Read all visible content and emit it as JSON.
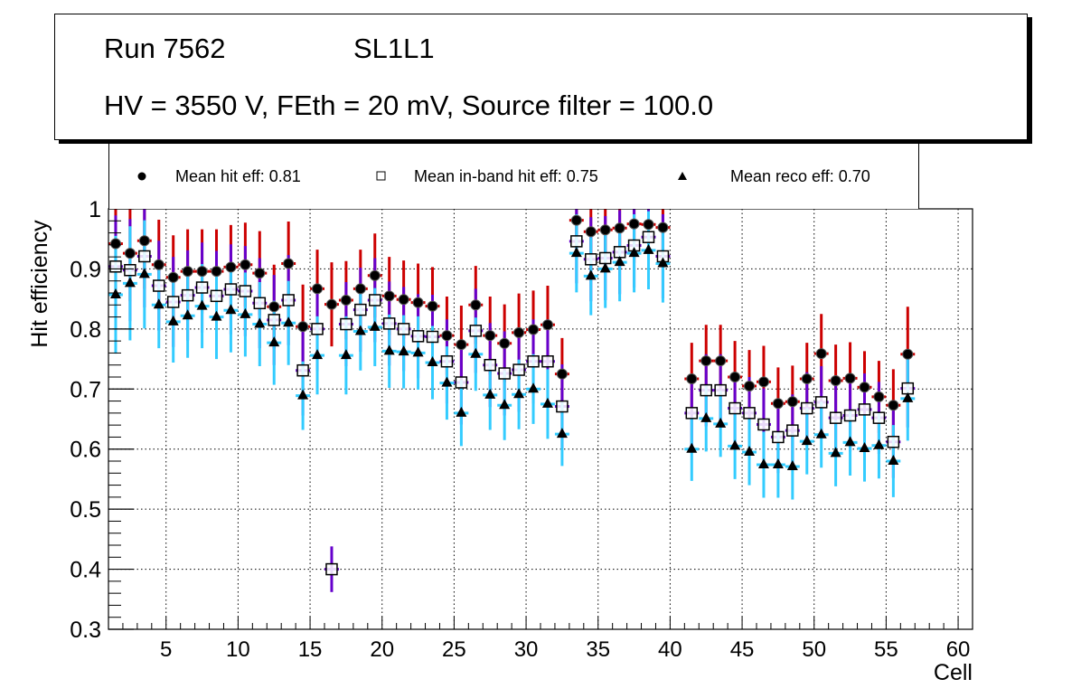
{
  "title": {
    "run": "Run 7562",
    "layer": "SL1L1",
    "conditions": "HV = 3550 V, FEth = 20 mV, Source filter = 100.0"
  },
  "legend": [
    {
      "marker": "filled-circle",
      "label": "Mean hit  eff: 0.81"
    },
    {
      "marker": "open-square",
      "label": "Mean in-band hit eff: 0.75"
    },
    {
      "marker": "filled-triangle",
      "label": "Mean reco eff: 0.70"
    }
  ],
  "colors": {
    "hit_error": "#cc0000",
    "inband_error": "#6600cc",
    "reco_error": "#33ccff",
    "marker": "#000000",
    "grid": "#000000"
  },
  "chart_data": {
    "type": "scatter",
    "title": "Run 7562 SL1L1 — HV = 3550 V, FEth = 20 mV, Source filter = 100.0",
    "xlabel": "Cell",
    "ylabel": "Hit efficiency",
    "xlim": [
      1,
      61
    ],
    "ylim": [
      0.3,
      1.0
    ],
    "xticks": [
      5,
      10,
      15,
      20,
      25,
      30,
      35,
      40,
      45,
      50,
      55,
      60
    ],
    "yticks": [
      0.3,
      0.4,
      0.5,
      0.6,
      0.7,
      0.8,
      0.9,
      1.0
    ],
    "ytick_labels": [
      "0.3",
      "0.4",
      "0.5",
      "0.6",
      "0.7",
      "0.8",
      "0.9",
      "1"
    ],
    "grid": true,
    "legend_position": "top",
    "series": [
      {
        "name": "Mean hit  eff: 0.81",
        "marker": "filled-circle",
        "error_color": "#cc0000",
        "points": [
          {
            "cell": 1,
            "value": 0.942,
            "err": 0.08
          },
          {
            "cell": 2,
            "value": 0.926,
            "err": 0.08
          },
          {
            "cell": 3,
            "value": 0.947,
            "err": 0.08
          },
          {
            "cell": 4,
            "value": 0.907,
            "err": 0.075
          },
          {
            "cell": 5,
            "value": 0.886,
            "err": 0.07
          },
          {
            "cell": 6,
            "value": 0.896,
            "err": 0.07
          },
          {
            "cell": 7,
            "value": 0.896,
            "err": 0.07
          },
          {
            "cell": 8,
            "value": 0.896,
            "err": 0.07
          },
          {
            "cell": 9,
            "value": 0.903,
            "err": 0.07
          },
          {
            "cell": 10,
            "value": 0.907,
            "err": 0.07
          },
          {
            "cell": 11,
            "value": 0.893,
            "err": 0.07
          },
          {
            "cell": 12,
            "value": 0.837,
            "err": 0.07
          },
          {
            "cell": 13,
            "value": 0.909,
            "err": 0.07
          },
          {
            "cell": 14,
            "value": 0.804,
            "err": 0.07
          },
          {
            "cell": 15,
            "value": 0.867,
            "err": 0.065
          },
          {
            "cell": 16,
            "value": 0.841,
            "err": 0.07
          },
          {
            "cell": 17,
            "value": 0.848,
            "err": 0.065
          },
          {
            "cell": 18,
            "value": 0.867,
            "err": 0.065
          },
          {
            "cell": 19,
            "value": 0.889,
            "err": 0.07
          },
          {
            "cell": 20,
            "value": 0.855,
            "err": 0.065
          },
          {
            "cell": 21,
            "value": 0.849,
            "err": 0.065
          },
          {
            "cell": 22,
            "value": 0.844,
            "err": 0.065
          },
          {
            "cell": 23,
            "value": 0.838,
            "err": 0.065
          },
          {
            "cell": 24,
            "value": 0.789,
            "err": 0.065
          },
          {
            "cell": 25,
            "value": 0.774,
            "err": 0.065
          },
          {
            "cell": 26,
            "value": 0.84,
            "err": 0.065
          },
          {
            "cell": 27,
            "value": 0.789,
            "err": 0.065
          },
          {
            "cell": 28,
            "value": 0.776,
            "err": 0.065
          },
          {
            "cell": 29,
            "value": 0.794,
            "err": 0.065
          },
          {
            "cell": 30,
            "value": 0.799,
            "err": 0.065
          },
          {
            "cell": 31,
            "value": 0.807,
            "err": 0.065
          },
          {
            "cell": 32,
            "value": 0.725,
            "err": 0.06
          },
          {
            "cell": 33,
            "value": 0.981,
            "err": 0.06
          },
          {
            "cell": 34,
            "value": 0.962,
            "err": 0.065
          },
          {
            "cell": 35,
            "value": 0.965,
            "err": 0.065
          },
          {
            "cell": 36,
            "value": 0.968,
            "err": 0.065
          },
          {
            "cell": 37,
            "value": 0.975,
            "err": 0.065
          },
          {
            "cell": 38,
            "value": 0.974,
            "err": 0.065
          },
          {
            "cell": 39,
            "value": 0.969,
            "err": 0.065
          },
          {
            "cell": 41,
            "value": 0.717,
            "err": 0.06
          },
          {
            "cell": 42,
            "value": 0.747,
            "err": 0.06
          },
          {
            "cell": 43,
            "value": 0.747,
            "err": 0.06
          },
          {
            "cell": 44,
            "value": 0.72,
            "err": 0.06
          },
          {
            "cell": 45,
            "value": 0.705,
            "err": 0.06
          },
          {
            "cell": 46,
            "value": 0.712,
            "err": 0.06
          },
          {
            "cell": 47,
            "value": 0.676,
            "err": 0.06
          },
          {
            "cell": 48,
            "value": 0.679,
            "err": 0.06
          },
          {
            "cell": 49,
            "value": 0.717,
            "err": 0.06
          },
          {
            "cell": 50,
            "value": 0.759,
            "err": 0.066
          },
          {
            "cell": 51,
            "value": 0.714,
            "err": 0.06
          },
          {
            "cell": 52,
            "value": 0.718,
            "err": 0.06
          },
          {
            "cell": 53,
            "value": 0.703,
            "err": 0.06
          },
          {
            "cell": 54,
            "value": 0.687,
            "err": 0.06
          },
          {
            "cell": 55,
            "value": 0.673,
            "err": 0.06
          },
          {
            "cell": 56,
            "value": 0.758,
            "err": 0.079
          }
        ]
      },
      {
        "name": "Mean in-band hit eff: 0.75",
        "marker": "open-square",
        "error_color": "#6600cc",
        "points": [
          {
            "cell": 1,
            "value": 0.904,
            "err": 0.085
          },
          {
            "cell": 2,
            "value": 0.898,
            "err": 0.085
          },
          {
            "cell": 3,
            "value": 0.921,
            "err": 0.085
          },
          {
            "cell": 4,
            "value": 0.872,
            "err": 0.075
          },
          {
            "cell": 5,
            "value": 0.845,
            "err": 0.075
          },
          {
            "cell": 6,
            "value": 0.856,
            "err": 0.075
          },
          {
            "cell": 7,
            "value": 0.869,
            "err": 0.075
          },
          {
            "cell": 8,
            "value": 0.855,
            "err": 0.075
          },
          {
            "cell": 9,
            "value": 0.866,
            "err": 0.075
          },
          {
            "cell": 10,
            "value": 0.863,
            "err": 0.075
          },
          {
            "cell": 11,
            "value": 0.843,
            "err": 0.075
          },
          {
            "cell": 12,
            "value": 0.815,
            "err": 0.075
          },
          {
            "cell": 13,
            "value": 0.848,
            "err": 0.075
          },
          {
            "cell": 14,
            "value": 0.731,
            "err": 0.075
          },
          {
            "cell": 15,
            "value": 0.8,
            "err": 0.07
          },
          {
            "cell": 16,
            "value": 0.4,
            "err": 0.038
          },
          {
            "cell": 17,
            "value": 0.808,
            "err": 0.07
          },
          {
            "cell": 18,
            "value": 0.832,
            "err": 0.07
          },
          {
            "cell": 19,
            "value": 0.848,
            "err": 0.07
          },
          {
            "cell": 20,
            "value": 0.809,
            "err": 0.07
          },
          {
            "cell": 21,
            "value": 0.8,
            "err": 0.07
          },
          {
            "cell": 22,
            "value": 0.788,
            "err": 0.07
          },
          {
            "cell": 23,
            "value": 0.787,
            "err": 0.07
          },
          {
            "cell": 24,
            "value": 0.746,
            "err": 0.07
          },
          {
            "cell": 25,
            "value": 0.711,
            "err": 0.07
          },
          {
            "cell": 26,
            "value": 0.797,
            "err": 0.07
          },
          {
            "cell": 27,
            "value": 0.74,
            "err": 0.07
          },
          {
            "cell": 28,
            "value": 0.726,
            "err": 0.07
          },
          {
            "cell": 29,
            "value": 0.732,
            "err": 0.07
          },
          {
            "cell": 30,
            "value": 0.746,
            "err": 0.07
          },
          {
            "cell": 31,
            "value": 0.746,
            "err": 0.07
          },
          {
            "cell": 32,
            "value": 0.671,
            "err": 0.07
          },
          {
            "cell": 33,
            "value": 0.946,
            "err": 0.07
          },
          {
            "cell": 34,
            "value": 0.916,
            "err": 0.07
          },
          {
            "cell": 35,
            "value": 0.918,
            "err": 0.07
          },
          {
            "cell": 36,
            "value": 0.928,
            "err": 0.07
          },
          {
            "cell": 37,
            "value": 0.939,
            "err": 0.07
          },
          {
            "cell": 38,
            "value": 0.953,
            "err": 0.07
          },
          {
            "cell": 39,
            "value": 0.921,
            "err": 0.07
          },
          {
            "cell": 41,
            "value": 0.66,
            "err": 0.06
          },
          {
            "cell": 42,
            "value": 0.698,
            "err": 0.06
          },
          {
            "cell": 43,
            "value": 0.698,
            "err": 0.06
          },
          {
            "cell": 44,
            "value": 0.668,
            "err": 0.06
          },
          {
            "cell": 45,
            "value": 0.66,
            "err": 0.06
          },
          {
            "cell": 46,
            "value": 0.641,
            "err": 0.06
          },
          {
            "cell": 47,
            "value": 0.62,
            "err": 0.06
          },
          {
            "cell": 48,
            "value": 0.631,
            "err": 0.06
          },
          {
            "cell": 49,
            "value": 0.668,
            "err": 0.06
          },
          {
            "cell": 50,
            "value": 0.678,
            "err": 0.06
          },
          {
            "cell": 51,
            "value": 0.652,
            "err": 0.06
          },
          {
            "cell": 52,
            "value": 0.656,
            "err": 0.06
          },
          {
            "cell": 53,
            "value": 0.666,
            "err": 0.06
          },
          {
            "cell": 54,
            "value": 0.652,
            "err": 0.06
          },
          {
            "cell": 55,
            "value": 0.612,
            "err": 0.06
          },
          {
            "cell": 56,
            "value": 0.701,
            "err": 0.065
          }
        ]
      },
      {
        "name": "Mean reco eff: 0.70",
        "marker": "filled-triangle",
        "error_color": "#33ccff",
        "points": [
          {
            "cell": 1,
            "value": 0.857,
            "err": 0.098
          },
          {
            "cell": 2,
            "value": 0.876,
            "err": 0.095
          },
          {
            "cell": 3,
            "value": 0.891,
            "err": 0.09
          },
          {
            "cell": 4,
            "value": 0.84,
            "err": 0.072
          },
          {
            "cell": 5,
            "value": 0.812,
            "err": 0.068
          },
          {
            "cell": 6,
            "value": 0.822,
            "err": 0.07
          },
          {
            "cell": 7,
            "value": 0.838,
            "err": 0.07
          },
          {
            "cell": 8,
            "value": 0.82,
            "err": 0.07
          },
          {
            "cell": 9,
            "value": 0.831,
            "err": 0.07
          },
          {
            "cell": 10,
            "value": 0.824,
            "err": 0.07
          },
          {
            "cell": 11,
            "value": 0.808,
            "err": 0.07
          },
          {
            "cell": 12,
            "value": 0.777,
            "err": 0.07
          },
          {
            "cell": 13,
            "value": 0.81,
            "err": 0.07
          },
          {
            "cell": 14,
            "value": 0.689,
            "err": 0.057
          },
          {
            "cell": 15,
            "value": 0.756,
            "err": 0.065
          },
          {
            "cell": 17,
            "value": 0.756,
            "err": 0.065
          },
          {
            "cell": 18,
            "value": 0.796,
            "err": 0.065
          },
          {
            "cell": 19,
            "value": 0.803,
            "err": 0.065
          },
          {
            "cell": 20,
            "value": 0.763,
            "err": 0.061
          },
          {
            "cell": 21,
            "value": 0.762,
            "err": 0.061
          },
          {
            "cell": 22,
            "value": 0.76,
            "err": 0.061
          },
          {
            "cell": 23,
            "value": 0.744,
            "err": 0.061
          },
          {
            "cell": 24,
            "value": 0.71,
            "err": 0.061
          },
          {
            "cell": 25,
            "value": 0.66,
            "err": 0.055
          },
          {
            "cell": 26,
            "value": 0.758,
            "err": 0.061
          },
          {
            "cell": 27,
            "value": 0.69,
            "err": 0.058
          },
          {
            "cell": 28,
            "value": 0.673,
            "err": 0.058
          },
          {
            "cell": 29,
            "value": 0.691,
            "err": 0.058
          },
          {
            "cell": 30,
            "value": 0.7,
            "err": 0.058
          },
          {
            "cell": 31,
            "value": 0.675,
            "err": 0.058
          },
          {
            "cell": 32,
            "value": 0.625,
            "err": 0.053
          },
          {
            "cell": 33,
            "value": 0.926,
            "err": 0.065
          },
          {
            "cell": 34,
            "value": 0.888,
            "err": 0.065
          },
          {
            "cell": 35,
            "value": 0.9,
            "err": 0.065
          },
          {
            "cell": 36,
            "value": 0.911,
            "err": 0.065
          },
          {
            "cell": 37,
            "value": 0.926,
            "err": 0.065
          },
          {
            "cell": 38,
            "value": 0.931,
            "err": 0.065
          },
          {
            "cell": 39,
            "value": 0.909,
            "err": 0.065
          },
          {
            "cell": 41,
            "value": 0.6,
            "err": 0.053
          },
          {
            "cell": 42,
            "value": 0.651,
            "err": 0.055
          },
          {
            "cell": 43,
            "value": 0.642,
            "err": 0.055
          },
          {
            "cell": 44,
            "value": 0.605,
            "err": 0.055
          },
          {
            "cell": 45,
            "value": 0.595,
            "err": 0.055
          },
          {
            "cell": 46,
            "value": 0.574,
            "err": 0.055
          },
          {
            "cell": 47,
            "value": 0.574,
            "err": 0.055
          },
          {
            "cell": 48,
            "value": 0.571,
            "err": 0.055
          },
          {
            "cell": 49,
            "value": 0.613,
            "err": 0.055
          },
          {
            "cell": 50,
            "value": 0.624,
            "err": 0.055
          },
          {
            "cell": 51,
            "value": 0.593,
            "err": 0.055
          },
          {
            "cell": 52,
            "value": 0.611,
            "err": 0.055
          },
          {
            "cell": 53,
            "value": 0.601,
            "err": 0.055
          },
          {
            "cell": 54,
            "value": 0.606,
            "err": 0.055
          },
          {
            "cell": 55,
            "value": 0.58,
            "err": 0.06
          },
          {
            "cell": 56,
            "value": 0.684,
            "err": 0.07
          }
        ]
      }
    ]
  }
}
